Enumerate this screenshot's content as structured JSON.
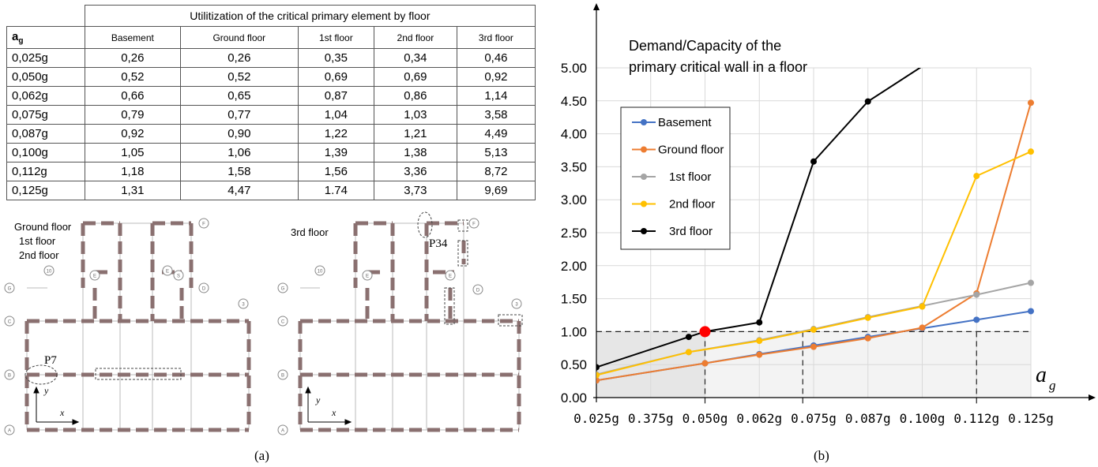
{
  "table": {
    "title": "Utilitization of the critical primary element by floor",
    "header_lead_main": "a",
    "header_lead_sub": "g",
    "columns": [
      "Basement",
      "Ground floor",
      "1st floor",
      "2nd floor",
      "3rd floor"
    ],
    "rows": [
      {
        "ag": "0,025g",
        "vals": [
          "0,26",
          "0,26",
          "0,35",
          "0,34",
          "0,46"
        ]
      },
      {
        "ag": "0,050g",
        "vals": [
          "0,52",
          "0,52",
          "0,69",
          "0,69",
          "0,92"
        ]
      },
      {
        "ag": "0,062g",
        "vals": [
          "0,66",
          "0,65",
          "0,87",
          "0,86",
          "1,14"
        ]
      },
      {
        "ag": "0,075g",
        "vals": [
          "0,79",
          "0,77",
          "1,04",
          "1,03",
          "3,58"
        ]
      },
      {
        "ag": "0,087g",
        "vals": [
          "0,92",
          "0,90",
          "1,22",
          "1,21",
          "4,49"
        ]
      },
      {
        "ag": "0,100g",
        "vals": [
          "1,05",
          "1,06",
          "1,39",
          "1,38",
          "5,13"
        ]
      },
      {
        "ag": "0,112g",
        "vals": [
          "1,18",
          "1,58",
          "1,56",
          "3,36",
          "8,72"
        ]
      },
      {
        "ag": "0,125g",
        "vals": [
          "1,31",
          "4,47",
          "1.74",
          "3,73",
          "9,69"
        ]
      }
    ]
  },
  "plans": {
    "left_label_lines": [
      "Ground floor",
      "1st floor",
      "2nd floor"
    ],
    "right_label": "3rd floor",
    "left_element": "P7",
    "right_element": "P34",
    "axis_x": "x",
    "axis_y": "y",
    "left_axis_markers": [
      "F",
      "E",
      "E",
      "S",
      "D",
      "G",
      "C",
      "B",
      "A",
      "10",
      "3"
    ],
    "right_axis_markers": [
      "F",
      "E",
      "E",
      "D",
      "G",
      "C",
      "B",
      "A",
      "10",
      "3"
    ]
  },
  "captions": {
    "a": "(a)",
    "b": "(b)"
  },
  "chart_data": {
    "type": "line",
    "title_lines": [
      "Demand/Capacity of the",
      "primary critical wall in a floor"
    ],
    "x_tick_labels": [
      "0.025g",
      "0.375g",
      "0.050g",
      "0.062g",
      "0.075g",
      "0.087g",
      "0.100g",
      "0.112g",
      "0.125g"
    ],
    "xlabel_main": "a",
    "xlabel_sub": "g",
    "ylim": [
      0,
      5
    ],
    "y_ticks": [
      "0.00",
      "0.50",
      "1.00",
      "1.50",
      "2.00",
      "2.50",
      "3.00",
      "3.50",
      "4.00",
      "4.50",
      "5.00"
    ],
    "grid": true,
    "legend_position": "top-left",
    "series": [
      {
        "name": "Basement",
        "color": "#4472C4",
        "values": [
          0.26,
          0.52,
          0.66,
          0.79,
          0.92,
          1.05,
          1.18,
          1.31
        ],
        "x_index": [
          0,
          2,
          3,
          4,
          5,
          6,
          7,
          8
        ]
      },
      {
        "name": "Ground floor",
        "color": "#ED7D31",
        "values": [
          0.26,
          0.52,
          0.65,
          0.77,
          0.9,
          1.06,
          1.58,
          4.47
        ],
        "x_index": [
          0,
          2,
          3,
          4,
          5,
          6,
          7,
          8
        ]
      },
      {
        "name": "1st floor",
        "color": "#A5A5A5",
        "values": [
          0.35,
          0.69,
          0.87,
          1.04,
          1.22,
          1.39,
          1.56,
          1.74
        ],
        "x_index": [
          0,
          1.7,
          3,
          4,
          5,
          6,
          7,
          8
        ]
      },
      {
        "name": "2nd floor",
        "color": "#FFC000",
        "values": [
          0.34,
          0.69,
          0.86,
          1.03,
          1.21,
          1.38,
          3.36,
          3.73
        ],
        "x_index": [
          0,
          1.7,
          3,
          4,
          5,
          6,
          7,
          8
        ]
      },
      {
        "name": "3rd floor",
        "color": "#000000",
        "values": [
          0.46,
          0.92,
          1.0,
          1.14,
          3.58,
          4.49,
          5.13
        ],
        "x_index": [
          0,
          1.7,
          2,
          3,
          4,
          5,
          6.2
        ]
      }
    ],
    "critical_point": {
      "x_index": 2,
      "y": 1.0,
      "color": "#FF0000"
    },
    "reference_lines": {
      "y": 1.0,
      "x_index": [
        2,
        3.8,
        7
      ]
    }
  }
}
